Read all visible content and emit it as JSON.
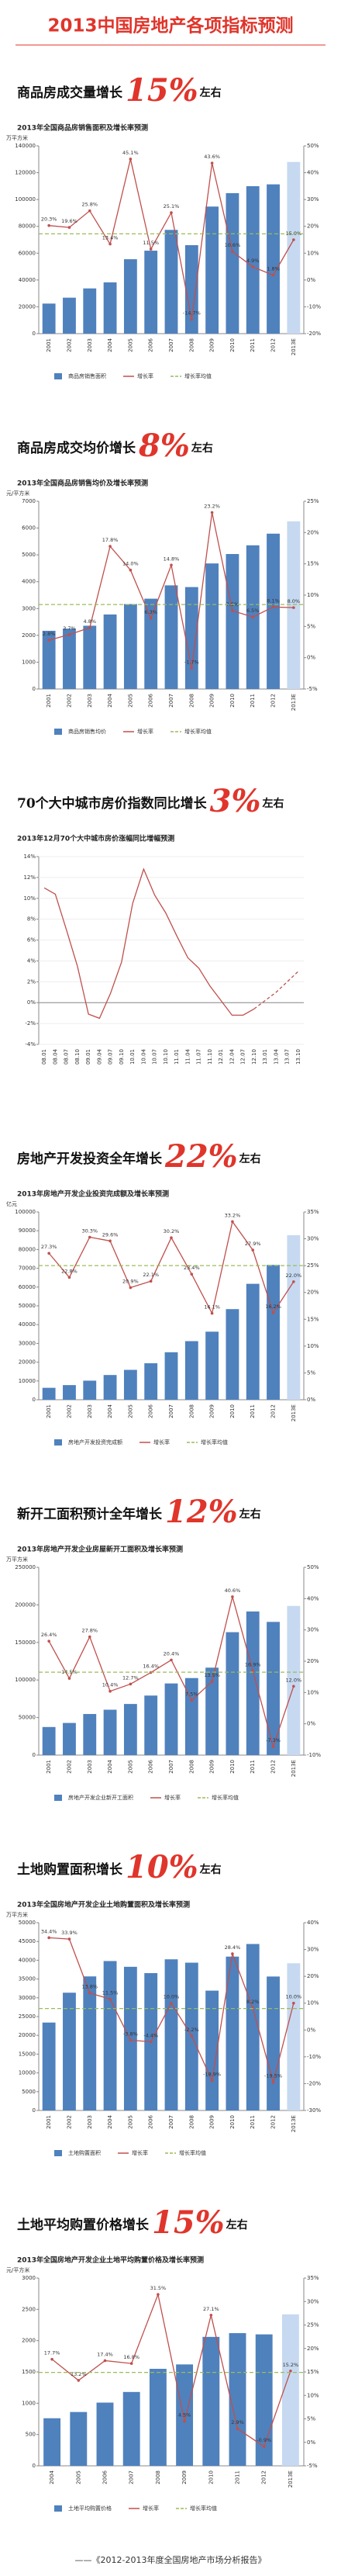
{
  "title": "2013中国房地产各项指标预测",
  "footer": "——《2012-2013年度全国房地产市场分析报告》",
  "chart_data": [
    {
      "type": "bar_line",
      "heading": {
        "text": "商品房成交量增长",
        "highlight": "15%",
        "suffix": "左右"
      },
      "title": "2013年全国商品房销售面积及增长率预测",
      "y_unit": "万平方米",
      "categories": [
        "2001",
        "2002",
        "2003",
        "2004",
        "2005",
        "2006",
        "2007",
        "2008",
        "2009",
        "2010",
        "2011",
        "2012",
        "2013E"
      ],
      "ylim": [
        0,
        140000
      ],
      "yticks": [
        0,
        20000,
        40000,
        60000,
        80000,
        100000,
        120000,
        140000
      ],
      "y2lim": [
        -20,
        50
      ],
      "y2ticks": [
        {
          "value": -20,
          "label": "-20%"
        },
        {
          "value": -10,
          "label": "-10%"
        },
        {
          "value": 0,
          "label": "0%"
        },
        {
          "value": 10,
          "label": "10%"
        },
        {
          "value": 20,
          "label": "20%"
        },
        {
          "value": 30,
          "label": "30%"
        },
        {
          "value": 40,
          "label": "40%"
        },
        {
          "value": 50,
          "label": "50%"
        }
      ],
      "series": [
        {
          "name": "商品房销售面积",
          "colors": [
            "#4f81bd",
            "#4f81bd",
            "#4f81bd",
            "#4f81bd",
            "#4f81bd",
            "#4f81bd",
            "#4f81bd",
            "#4f81bd",
            "#4f81bd",
            "#4f81bd",
            "#4f81bd",
            "#4f81bd",
            "#c6d9f1"
          ],
          "values": [
            22412,
            26808,
            33718,
            38232,
            55486,
            61857,
            77355,
            65970,
            94755,
            104765,
            109946,
            111304,
            128000
          ]
        },
        {
          "name": "增长率",
          "color": "#c0504d",
          "axis": "y2",
          "values": [
            20.3,
            19.6,
            25.8,
            13.4,
            45.1,
            11.5,
            25.1,
            -14.7,
            43.6,
            10.6,
            4.9,
            1.8,
            15.0
          ],
          "value_labels": [
            "20.3%",
            "19.6%",
            "25.8%",
            "13.4%",
            "45.1%",
            "11.5%",
            "25.1%",
            "-14.7%",
            "43.6%",
            "10.6%",
            "4.9%",
            "1.8%",
            "15.0%"
          ]
        }
      ],
      "average": {
        "name": "增长率均值",
        "color": "#9bbb59",
        "value": 17.2
      }
    },
    {
      "type": "bar_line",
      "heading": {
        "text": "商品房成交均价增长",
        "highlight": "8%",
        "suffix": "左右"
      },
      "title": "2013年全国商品房销售均价及增长率预测",
      "y_unit": "元/平方米",
      "categories": [
        "2001",
        "2002",
        "2003",
        "2004",
        "2005",
        "2006",
        "2007",
        "2008",
        "2009",
        "2010",
        "2011",
        "2012",
        "2013E"
      ],
      "ylim": [
        0,
        7000
      ],
      "yticks": [
        0,
        1000,
        2000,
        3000,
        4000,
        5000,
        6000,
        7000
      ],
      "y2lim": [
        -5,
        25
      ],
      "y2ticks": [
        {
          "value": -5,
          "label": "-5%"
        },
        {
          "value": 0,
          "label": "0%"
        },
        {
          "value": 5,
          "label": "5%"
        },
        {
          "value": 10,
          "label": "10%"
        },
        {
          "value": 15,
          "label": "15%"
        },
        {
          "value": 20,
          "label": "20%"
        },
        {
          "value": 25,
          "label": "25%"
        }
      ],
      "series": [
        {
          "name": "商品房销售均价",
          "colors": [
            "#4f81bd",
            "#4f81bd",
            "#4f81bd",
            "#4f81bd",
            "#4f81bd",
            "#4f81bd",
            "#4f81bd",
            "#4f81bd",
            "#4f81bd",
            "#4f81bd",
            "#4f81bd",
            "#4f81bd",
            "#c6d9f1"
          ],
          "values": [
            2170,
            2250,
            2359,
            2778,
            3168,
            3367,
            3864,
            3800,
            4681,
            5032,
            5357,
            5791,
            6250
          ]
        },
        {
          "name": "增长率",
          "color": "#c0504d",
          "axis": "y2",
          "values": [
            2.8,
            3.7,
            4.8,
            17.8,
            14.0,
            6.3,
            14.8,
            -1.7,
            23.2,
            7.5,
            6.5,
            8.1,
            8.0
          ],
          "value_labels": [
            "2.8%",
            "3.7%",
            "4.8%",
            "17.8%",
            "14.0%",
            "6.3%",
            "14.8%",
            "-1.7%",
            "23.2%",
            "7.5%",
            "6.5%",
            "8.1%",
            "8.0%"
          ]
        }
      ],
      "average": {
        "name": "增长率均值",
        "color": "#9bbb59",
        "value": 8.5
      }
    },
    {
      "type": "line",
      "heading": {
        "text": "70个大中城市房价指数同比增长",
        "highlight": "3%",
        "suffix": "左右"
      },
      "title": "2013年12月70个大中城市房价涨幅同比增幅预测",
      "categories": [
        "08.01",
        "08.04",
        "08.07",
        "08.10",
        "09.01",
        "09.04",
        "09.07",
        "09.10",
        "10.01",
        "10.04",
        "10.07",
        "10.10",
        "11.01",
        "11.04",
        "11.07",
        "11.10",
        "12.01",
        "12.04",
        "12.07",
        "12.10",
        "13.01",
        "13.04",
        "13.07",
        "13.10"
      ],
      "ylim": [
        -4,
        14
      ],
      "yticks": [
        {
          "value": -4,
          "label": "-4%"
        },
        {
          "value": -2,
          "label": "-2%"
        },
        {
          "value": 0,
          "label": "0%"
        },
        {
          "value": 2,
          "label": "2%"
        },
        {
          "value": 4,
          "label": "4%"
        },
        {
          "value": 6,
          "label": "6%"
        },
        {
          "value": 8,
          "label": "8%"
        },
        {
          "value": 10,
          "label": "10%"
        },
        {
          "value": 12,
          "label": "12%"
        },
        {
          "value": 14,
          "label": "14%"
        }
      ],
      "series": [
        {
          "color": "#c0504d",
          "dashed": false,
          "values": [
            11.0,
            10.4,
            7.0,
            3.5,
            -1.1,
            -1.5,
            0.9,
            3.9,
            9.5,
            12.8,
            10.3,
            8.6,
            6.4,
            4.3,
            3.3,
            1.6,
            0.2,
            -1.2,
            -1.2,
            -0.6,
            null,
            null,
            null,
            null
          ]
        },
        {
          "color": "#c0504d",
          "dashed": true,
          "values": [
            null,
            null,
            null,
            null,
            null,
            null,
            null,
            null,
            null,
            null,
            null,
            null,
            null,
            null,
            null,
            null,
            null,
            null,
            null,
            -0.6,
            0.2,
            1.0,
            2.0,
            3.0
          ]
        }
      ]
    },
    {
      "type": "bar_line",
      "heading": {
        "text": "房地产开发投资全年增长",
        "highlight": "22%",
        "suffix": "左右"
      },
      "title": "2013年房地产开发企业投资完成额及增长率预测",
      "y_unit": "亿元",
      "categories": [
        "2001",
        "2002",
        "2003",
        "2004",
        "2005",
        "2006",
        "2007",
        "2008",
        "2009",
        "2010",
        "2011",
        "2012",
        "2013E"
      ],
      "ylim": [
        0,
        100000
      ],
      "yticks": [
        0,
        10000,
        20000,
        30000,
        40000,
        50000,
        60000,
        70000,
        80000,
        90000,
        100000
      ],
      "y2lim": [
        0,
        35
      ],
      "y2ticks": [
        {
          "value": 0,
          "label": "0%"
        },
        {
          "value": 5,
          "label": "5%"
        },
        {
          "value": 10,
          "label": "10%"
        },
        {
          "value": 15,
          "label": "15%"
        },
        {
          "value": 20,
          "label": "20%"
        },
        {
          "value": 25,
          "label": "25%"
        },
        {
          "value": 30,
          "label": "30%"
        },
        {
          "value": 35,
          "label": "35%"
        }
      ],
      "series": [
        {
          "name": "房地产开发投资完成额",
          "colors": [
            "#4f81bd",
            "#4f81bd",
            "#4f81bd",
            "#4f81bd",
            "#4f81bd",
            "#4f81bd",
            "#4f81bd",
            "#4f81bd",
            "#4f81bd",
            "#4f81bd",
            "#4f81bd",
            "#4f81bd",
            "#c6d9f1"
          ],
          "values": [
            6344,
            7791,
            10154,
            13158,
            15909,
            19423,
            25289,
            31203,
            36242,
            48259,
            61740,
            71804,
            87600
          ]
        },
        {
          "name": "增长率",
          "color": "#c0504d",
          "axis": "y2",
          "values": [
            27.3,
            22.8,
            30.3,
            29.6,
            20.9,
            22.1,
            30.2,
            23.4,
            16.1,
            33.2,
            27.9,
            16.2,
            22.0
          ],
          "value_labels": [
            "27.3%",
            "22.8%",
            "30.3%",
            "29.6%",
            "20.9%",
            "22.1%",
            "30.2%",
            "23.4%",
            "16.1%",
            "33.2%",
            "27.9%",
            "16.2%",
            "22.0%"
          ]
        }
      ],
      "average": {
        "name": "增长率均值",
        "color": "#9bbb59",
        "value": 25.0
      }
    },
    {
      "type": "bar_line",
      "heading": {
        "text": "新开工面积预计全年增长",
        "highlight": "12%",
        "suffix": "左右"
      },
      "title": "2013年房地产开发企业房屋新开工面积及增长率预测",
      "y_unit": "万平方米",
      "categories": [
        "2001",
        "2002",
        "2003",
        "2004",
        "2005",
        "2006",
        "2007",
        "2008",
        "2009",
        "2010",
        "2011",
        "2012",
        "2013E"
      ],
      "ylim": [
        0,
        250000
      ],
      "yticks": [
        0,
        50000,
        100000,
        150000,
        200000,
        250000
      ],
      "y2lim": [
        -10,
        50
      ],
      "y2ticks": [
        {
          "value": -10,
          "label": "-10%"
        },
        {
          "value": 0,
          "label": "0%"
        },
        {
          "value": 10,
          "label": "10%"
        },
        {
          "value": 20,
          "label": "20%"
        },
        {
          "value": 30,
          "label": "30%"
        },
        {
          "value": 40,
          "label": "40%"
        },
        {
          "value": 50,
          "label": "50%"
        }
      ],
      "series": [
        {
          "name": "房地产开发企业新开工面积",
          "colors": [
            "#4f81bd",
            "#4f81bd",
            "#4f81bd",
            "#4f81bd",
            "#4f81bd",
            "#4f81bd",
            "#4f81bd",
            "#4f81bd",
            "#4f81bd",
            "#4f81bd",
            "#4f81bd",
            "#4f81bd",
            "#c6d9f1"
          ],
          "values": [
            37394,
            42800,
            54708,
            60414,
            68064,
            79253,
            95402,
            102553,
            116422,
            163647,
            191237,
            177334,
            198600
          ]
        },
        {
          "name": "增长率",
          "color": "#c0504d",
          "axis": "y2",
          "values": [
            26.4,
            14.5,
            27.8,
            10.4,
            12.7,
            16.4,
            20.4,
            7.5,
            13.5,
            40.6,
            16.9,
            -7.3,
            12.0
          ],
          "value_labels": [
            "26.4%",
            "14.5%",
            "27.8%",
            "10.4%",
            "12.7%",
            "16.4%",
            "20.4%",
            "7.5%",
            "13.5%",
            "40.6%",
            "16.9%",
            "-7.3%",
            "12.0%"
          ]
        }
      ],
      "average": {
        "name": "增长率均值",
        "color": "#9bbb59",
        "value": 16.5
      }
    },
    {
      "type": "bar_line",
      "heading": {
        "text": "土地购置面积增长",
        "highlight": "10%",
        "suffix": "左右"
      },
      "title": "2013年全国房地产开发企业土地购置面积及增长率预测",
      "y_unit": "万平方米",
      "categories": [
        "2001",
        "2002",
        "2003",
        "2004",
        "2005",
        "2006",
        "2007",
        "2008",
        "2009",
        "2010",
        "2011",
        "2012",
        "2013E"
      ],
      "ylim": [
        0,
        50000
      ],
      "yticks": [
        0,
        5000,
        10000,
        15000,
        20000,
        25000,
        30000,
        35000,
        40000,
        45000,
        50000
      ],
      "y2lim": [
        -30,
        40
      ],
      "y2ticks": [
        {
          "value": -30,
          "label": "-30%"
        },
        {
          "value": -20,
          "label": "-20%"
        },
        {
          "value": -10,
          "label": "-10%"
        },
        {
          "value": 0,
          "label": "0%"
        },
        {
          "value": 10,
          "label": "10%"
        },
        {
          "value": 20,
          "label": "20%"
        },
        {
          "value": 30,
          "label": "30%"
        },
        {
          "value": 40,
          "label": "40%"
        }
      ],
      "series": [
        {
          "name": "土地购置面积",
          "colors": [
            "#4f81bd",
            "#4f81bd",
            "#4f81bd",
            "#4f81bd",
            "#4f81bd",
            "#4f81bd",
            "#4f81bd",
            "#4f81bd",
            "#4f81bd",
            "#4f81bd",
            "#4f81bd",
            "#4f81bd",
            "#c6d9f1"
          ],
          "values": [
            23409,
            31357,
            35697,
            39785,
            38254,
            36574,
            40246,
            39353,
            31906,
            40970,
            44327,
            35667,
            39200
          ]
        },
        {
          "name": "增长率",
          "color": "#c0504d",
          "axis": "y2",
          "values": [
            34.4,
            33.9,
            13.8,
            11.5,
            -3.8,
            -4.4,
            10.0,
            -2.2,
            -18.9,
            28.4,
            8.2,
            -19.5,
            10.0
          ],
          "value_labels": [
            "34.4%",
            "33.9%",
            "13.8%",
            "11.5%",
            "-3.8%",
            "-4.4%",
            "10.0%",
            "-2.2%",
            "-18.9%",
            "28.4%",
            "8.2%",
            "-19.5%",
            "10.0%"
          ]
        }
      ],
      "average": {
        "name": "增长率均值",
        "color": "#9bbb59",
        "value": 8.0
      }
    },
    {
      "type": "bar_line",
      "heading": {
        "text": "土地平均购置价格增长",
        "highlight": "15%",
        "suffix": "左右"
      },
      "title": "2013年全国房地产开发企业土地平均购置价格及增长率预测",
      "y_unit": "元/平方米",
      "categories": [
        "2004",
        "2005",
        "2006",
        "2007",
        "2008",
        "2009",
        "2010",
        "2011",
        "2012",
        "2013E"
      ],
      "ylim": [
        0,
        3000
      ],
      "yticks": [
        0,
        500,
        1000,
        1500,
        2000,
        2500,
        3000
      ],
      "y2lim": [
        -5,
        35
      ],
      "y2ticks": [
        {
          "value": -5,
          "label": "-5%"
        },
        {
          "value": 0,
          "label": "0%"
        },
        {
          "value": 5,
          "label": "5%"
        },
        {
          "value": 10,
          "label": "10%"
        },
        {
          "value": 15,
          "label": "15%"
        },
        {
          "value": 20,
          "label": "20%"
        },
        {
          "value": 25,
          "label": "25%"
        },
        {
          "value": 30,
          "label": "30%"
        },
        {
          "value": 35,
          "label": "35%"
        }
      ],
      "series": [
        {
          "name": "土地平均购置价格",
          "colors": [
            "#4f81bd",
            "#4f81bd",
            "#4f81bd",
            "#4f81bd",
            "#4f81bd",
            "#4f81bd",
            "#4f81bd",
            "#4f81bd",
            "#4f81bd",
            "#c6d9f1"
          ],
          "values": [
            760,
            860,
            1010,
            1180,
            1550,
            1620,
            2060,
            2120,
            2100,
            2420
          ]
        },
        {
          "name": "增长率",
          "color": "#c0504d",
          "axis": "y2",
          "values": [
            17.7,
            13.2,
            17.4,
            16.8,
            31.5,
            4.5,
            27.1,
            2.9,
            -0.9,
            15.2
          ],
          "value_labels": [
            "17.7%",
            "13.2%",
            "17.4%",
            "16.8%",
            "31.5%",
            "4.5%",
            "27.1%",
            "2.9%",
            "-0.9%",
            "15.2%"
          ]
        }
      ],
      "average": {
        "name": "增长率均值",
        "color": "#9bbb59",
        "value": 14.9
      }
    }
  ]
}
